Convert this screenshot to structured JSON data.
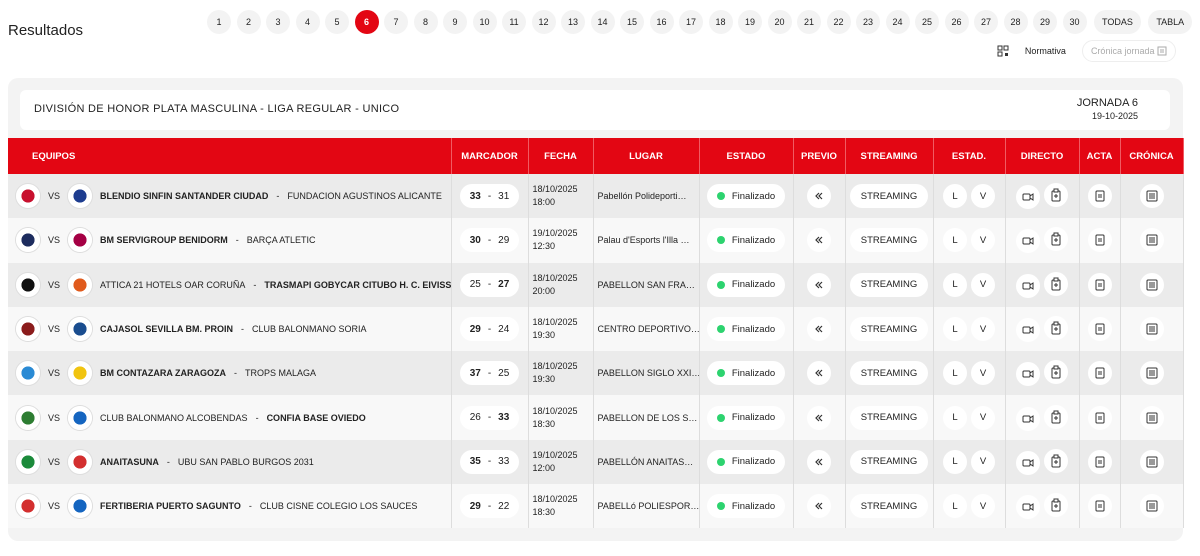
{
  "header": {
    "title": "Resultados"
  },
  "rounds": {
    "items": [
      "1",
      "2",
      "3",
      "4",
      "5",
      "6",
      "7",
      "8",
      "9",
      "10",
      "11",
      "12",
      "13",
      "14",
      "15",
      "16",
      "17",
      "18",
      "19",
      "20",
      "21",
      "22",
      "23",
      "24",
      "25",
      "26",
      "27",
      "28",
      "29",
      "30",
      "TODAS",
      "TABLA"
    ],
    "active": 5
  },
  "actions": {
    "rules": "Normativa",
    "chronicle": "Crónica jornada"
  },
  "competition": {
    "title": "DIVISIÓN DE HONOR PLATA MASCULINA - LIGA REGULAR - UNICO",
    "round": "JORNADA 6",
    "date": "19-10-2025"
  },
  "labels": {
    "vs": "VS",
    "separator": "-",
    "local": "L",
    "visitor": "V"
  },
  "table": {
    "columns": [
      "EQUIPOS",
      "MARCADOR",
      "FECHA",
      "LUGAR",
      "ESTADO",
      "PREVIO",
      "STREAMING",
      "ESTAD.",
      "DIRECTO",
      "ACTA",
      "CRÓNICA"
    ],
    "rows": [
      {
        "home": "BLENDIO SINFIN SANTANDER CIUDAD",
        "away": "FUNDACION AGUSTINOS ALICANTE",
        "score_home": 33,
        "score_away": 31,
        "date": "18/10/2025",
        "time": "18:00",
        "venue": "Pabellón Polideporti…",
        "status": "Finalizado",
        "streaming": "STREAMING"
      },
      {
        "home": "BM SERVIGROUP BENIDORM",
        "away": "BARÇA ATLETIC",
        "score_home": 30,
        "score_away": 29,
        "date": "19/10/2025",
        "time": "12:30",
        "venue": "Palau d'Esports l'Illa …",
        "status": "Finalizado",
        "streaming": "STREAMING"
      },
      {
        "home": "ATTICA 21 HOTELS OAR CORUÑA",
        "away": "TRASMAPI GOBYCAR CITUBO H. C. EIVISSA",
        "score_home": 25,
        "score_away": 27,
        "date": "18/10/2025",
        "time": "20:00",
        "venue": "PABELLON SAN FRA…",
        "status": "Finalizado",
        "streaming": "STREAMING"
      },
      {
        "home": "CAJASOL SEVILLA BM. PROIN",
        "away": "CLUB BALONMANO SORIA",
        "score_home": 29,
        "score_away": 24,
        "date": "18/10/2025",
        "time": "19:30",
        "venue": "CENTRO DEPORTIVO…",
        "status": "Finalizado",
        "streaming": "STREAMING"
      },
      {
        "home": "BM CONTAZARA ZARAGOZA",
        "away": "TROPS MALAGA",
        "score_home": 37,
        "score_away": 25,
        "date": "18/10/2025",
        "time": "19:30",
        "venue": "PABELLON SIGLO XXI…",
        "status": "Finalizado",
        "streaming": "STREAMING"
      },
      {
        "home": "CLUB BALONMANO ALCOBENDAS",
        "away": "CONFIA BASE OVIEDO",
        "score_home": 26,
        "score_away": 33,
        "date": "18/10/2025",
        "time": "18:30",
        "venue": "PABELLON DE LOS S…",
        "status": "Finalizado",
        "streaming": "STREAMING"
      },
      {
        "home": "ANAITASUNA",
        "away": "UBU SAN PABLO BURGOS 2031",
        "score_home": 35,
        "score_away": 33,
        "date": "19/10/2025",
        "time": "12:00",
        "venue": "PABELLÓN ANAITAS…",
        "status": "Finalizado",
        "streaming": "STREAMING"
      },
      {
        "home": "FERTIBERIA PUERTO SAGUNTO",
        "away": "CLUB CISNE COLEGIO LOS SAUCES",
        "score_home": 29,
        "score_away": 22,
        "date": "18/10/2025",
        "time": "18:30",
        "venue": "PABELLó POLIESPOR…",
        "status": "Finalizado",
        "streaming": "STREAMING"
      }
    ]
  }
}
